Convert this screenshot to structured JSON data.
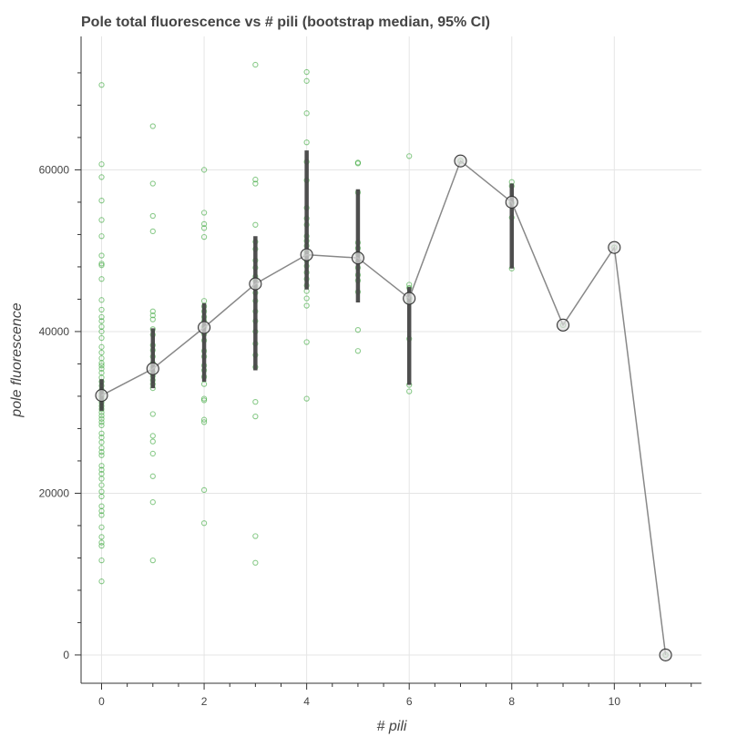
{
  "chart_data": {
    "type": "scatter",
    "title": "Pole total fluorescence vs # pili (bootstrap median, 95% CI)",
    "xlabel": "# pili",
    "ylabel": "pole fluorescence",
    "xlim": [
      -0.4,
      11.7
    ],
    "ylim": [
      -3500,
      76500
    ],
    "x_ticks": [
      0,
      2,
      4,
      6,
      8,
      10
    ],
    "y_ticks": [
      0,
      20000,
      40000,
      60000
    ],
    "x_tick_labels": [
      "0",
      "2",
      "4",
      "6",
      "8",
      "10"
    ],
    "y_tick_labels": [
      "0",
      "20000",
      "40000",
      "60000"
    ],
    "grid": true,
    "colors": {
      "points": "#2ca02c",
      "median": "#888888",
      "ci": "#444444",
      "grid": "#e5e5e5",
      "axis": "#333333"
    },
    "raw_points": [
      {
        "x": 0,
        "y": [
          70500,
          60700,
          59100,
          56200,
          53800,
          51800,
          49400,
          48400,
          48200,
          46500,
          43900,
          42700,
          41800,
          41300,
          40600,
          40000,
          39200,
          38100,
          37400,
          36700,
          36100,
          35800,
          35400,
          34900,
          34300,
          33800,
          33300,
          32800,
          32400,
          32000,
          31600,
          31200,
          30800,
          30400,
          30000,
          29600,
          29200,
          28800,
          28400,
          27400,
          26900,
          26300,
          25600,
          25100,
          24700,
          23400,
          22900,
          22400,
          21800,
          21000,
          20200,
          19600,
          18400,
          17800,
          17300,
          15800,
          14600,
          13900,
          13500,
          11700,
          9100
        ]
      },
      {
        "x": 1,
        "y": [
          65400,
          58300,
          54300,
          52400,
          42500,
          42000,
          41500,
          40300,
          39600,
          38300,
          37700,
          36900,
          36100,
          35600,
          35000,
          34500,
          34000,
          33500,
          33000,
          29800,
          27100,
          26400,
          24900,
          22100,
          18900,
          11700
        ]
      },
      {
        "x": 2,
        "y": [
          60000,
          54700,
          53300,
          52800,
          51700,
          43800,
          43100,
          42500,
          41800,
          41300,
          40600,
          39700,
          38900,
          37600,
          36900,
          35800,
          35200,
          34400,
          33500,
          31700,
          31500,
          29100,
          28800,
          20400,
          16300
        ]
      },
      {
        "x": 3,
        "y": [
          73000,
          58800,
          58300,
          53200,
          51100,
          50200,
          48800,
          47900,
          46800,
          46300,
          45600,
          44800,
          43800,
          42500,
          41300,
          40000,
          38500,
          37100,
          35600,
          31300,
          29500,
          14700,
          11400
        ]
      },
      {
        "x": 4,
        "y": [
          72100,
          71000,
          67000,
          63400,
          61000,
          58700,
          55300,
          54000,
          53200,
          51800,
          51200,
          50600,
          49900,
          49400,
          48800,
          48100,
          47300,
          46500,
          45700,
          45000,
          44100,
          43200,
          38700,
          31700
        ]
      },
      {
        "x": 5,
        "y": [
          60900,
          60800,
          57200,
          51000,
          50300,
          49600,
          48700,
          47900,
          47000,
          46300,
          44900,
          40200,
          37600
        ]
      },
      {
        "x": 6,
        "y": [
          61700,
          45800,
          45400,
          44100,
          43600,
          39100,
          33400,
          32600
        ]
      },
      {
        "x": 7,
        "y": [
          61100
        ]
      },
      {
        "x": 8,
        "y": [
          58500,
          58000,
          55900,
          54100,
          47800
        ]
      },
      {
        "x": 9,
        "y": [
          40800
        ]
      },
      {
        "x": 10,
        "y": [
          50400
        ]
      },
      {
        "x": 11,
        "y": [
          0
        ]
      }
    ],
    "medians": [
      {
        "x": 0,
        "y": 32100,
        "ci": [
          30200,
          34100
        ]
      },
      {
        "x": 1,
        "y": 35400,
        "ci": [
          33000,
          40400
        ]
      },
      {
        "x": 2,
        "y": 40500,
        "ci": [
          33800,
          43500
        ]
      },
      {
        "x": 3,
        "y": 45900,
        "ci": [
          35200,
          51800
        ]
      },
      {
        "x": 4,
        "y": 49500,
        "ci": [
          45200,
          62400
        ]
      },
      {
        "x": 5,
        "y": 49100,
        "ci": [
          43600,
          57600
        ]
      },
      {
        "x": 6,
        "y": 44100,
        "ci": [
          33400,
          45500
        ]
      },
      {
        "x": 7,
        "y": 61100,
        "ci": [
          61100,
          61100
        ]
      },
      {
        "x": 8,
        "y": 56000,
        "ci": [
          47800,
          58300
        ]
      },
      {
        "x": 9,
        "y": 40800,
        "ci": [
          40800,
          40800
        ]
      },
      {
        "x": 10,
        "y": 50400,
        "ci": [
          50400,
          50400
        ]
      },
      {
        "x": 11,
        "y": 0,
        "ci": [
          0,
          0
        ]
      }
    ]
  }
}
